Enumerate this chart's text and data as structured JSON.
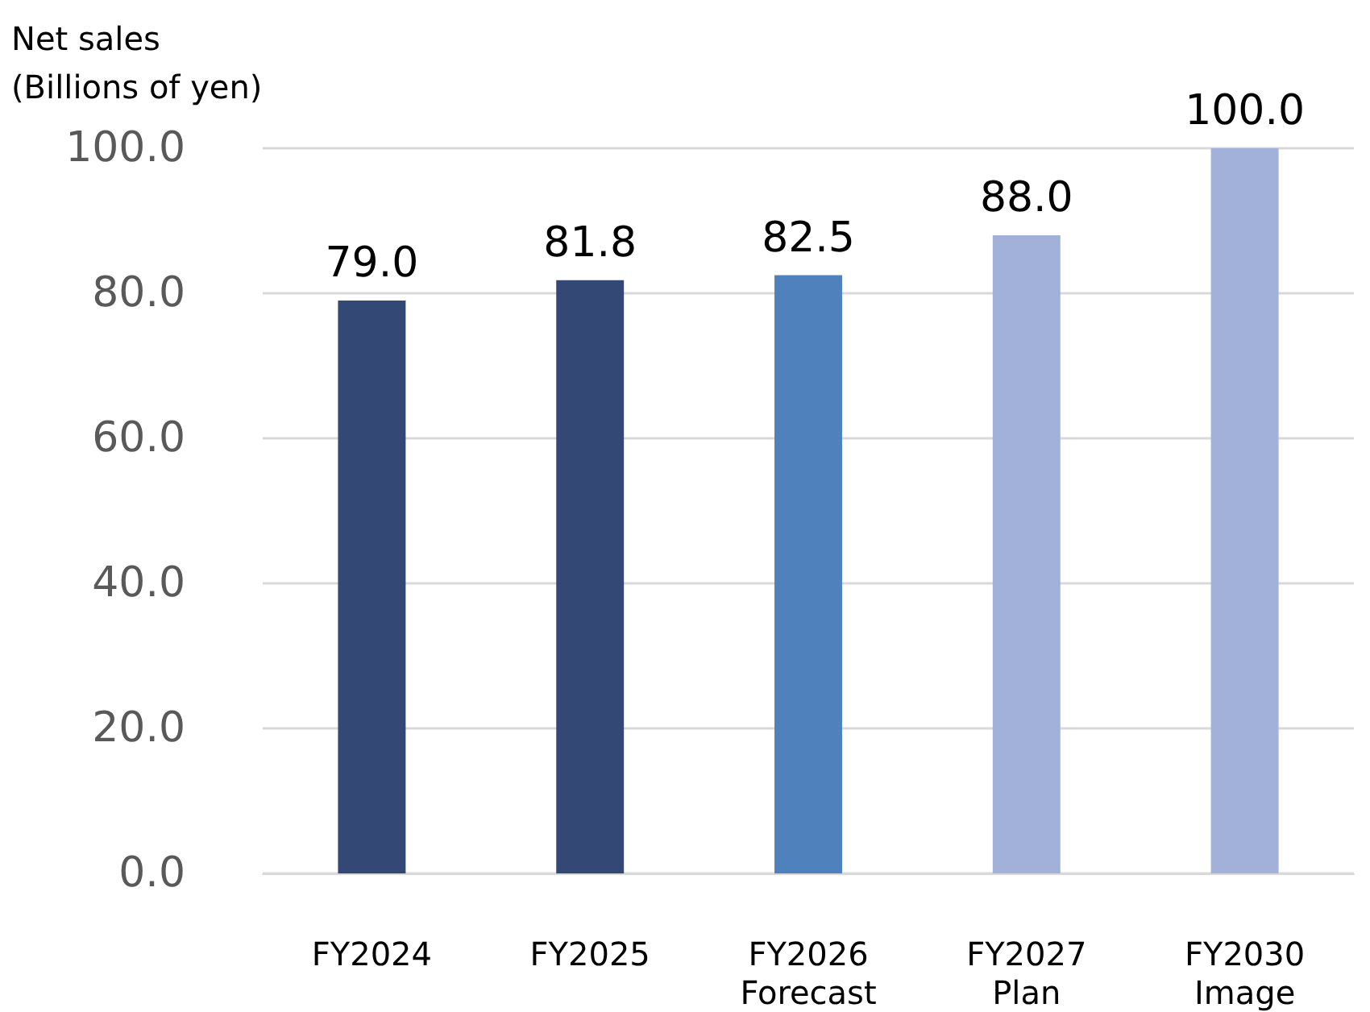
{
  "chart_data": {
    "type": "bar",
    "ylabel": "Net sales\n(Billions of yen)",
    "categories": [
      "FY2024",
      "FY2025",
      "FY2026\nForecast",
      "FY2027\nPlan",
      "FY2030\nImage"
    ],
    "values": [
      79.0,
      81.8,
      82.5,
      88.0,
      100.0
    ],
    "colors": [
      "#344875",
      "#344875",
      "#4f81bd",
      "#a2b1d9",
      "#a2b1d9"
    ],
    "value_labels": [
      "79.0",
      "81.8",
      "82.5",
      "88.0",
      "100.0"
    ],
    "ylim": [
      0,
      100
    ],
    "yticks": [
      {
        "value": 0,
        "label": "0.0"
      },
      {
        "value": 20,
        "label": "20.0"
      },
      {
        "value": 40,
        "label": "40.0"
      },
      {
        "value": 60,
        "label": "60.0"
      },
      {
        "value": 80,
        "label": "80.0"
      },
      {
        "value": 100,
        "label": "100.0"
      }
    ],
    "grid": "y"
  }
}
